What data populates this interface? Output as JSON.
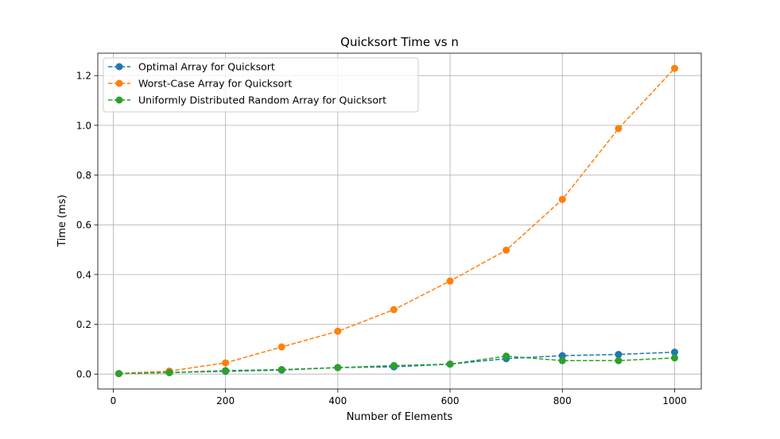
{
  "chart_data": {
    "type": "line",
    "title": "Quicksort Time vs n",
    "xlabel": "Number of Elements",
    "ylabel": "Time (ms)",
    "xlim": [
      -27.5,
      1047.5
    ],
    "ylim": [
      -0.06,
      1.29
    ],
    "xticks": [
      0,
      200,
      400,
      600,
      800,
      1000
    ],
    "yticks": [
      0.0,
      0.2,
      0.4,
      0.6,
      0.8,
      1.0,
      1.2
    ],
    "xtick_labels": [
      "0",
      "200",
      "400",
      "600",
      "800",
      "1000"
    ],
    "ytick_labels": [
      "0.0",
      "0.2",
      "0.4",
      "0.6",
      "0.8",
      "1.0",
      "1.2"
    ],
    "grid": true,
    "legend_position": "upper-left",
    "line_style": "dashed",
    "marker": "circle",
    "x": [
      10,
      100,
      200,
      300,
      400,
      500,
      600,
      700,
      800,
      900,
      1000
    ],
    "series": [
      {
        "name": "Optimal Array for Quicksort",
        "color": "#1f77b4",
        "values": [
          0.002,
          0.006,
          0.011,
          0.016,
          0.026,
          0.029,
          0.04,
          0.062,
          0.074,
          0.079,
          0.088
        ]
      },
      {
        "name": "Worst-Case Array for Quicksort",
        "color": "#ff7f0e",
        "values": [
          0.002,
          0.012,
          0.045,
          0.109,
          0.172,
          0.259,
          0.374,
          0.498,
          0.702,
          0.987,
          1.229
        ]
      },
      {
        "name": "Uniformly Distributed Random Array for Quicksort",
        "color": "#2ca02c",
        "values": [
          0.002,
          0.006,
          0.014,
          0.018,
          0.026,
          0.034,
          0.04,
          0.072,
          0.054,
          0.054,
          0.065
        ]
      }
    ]
  }
}
